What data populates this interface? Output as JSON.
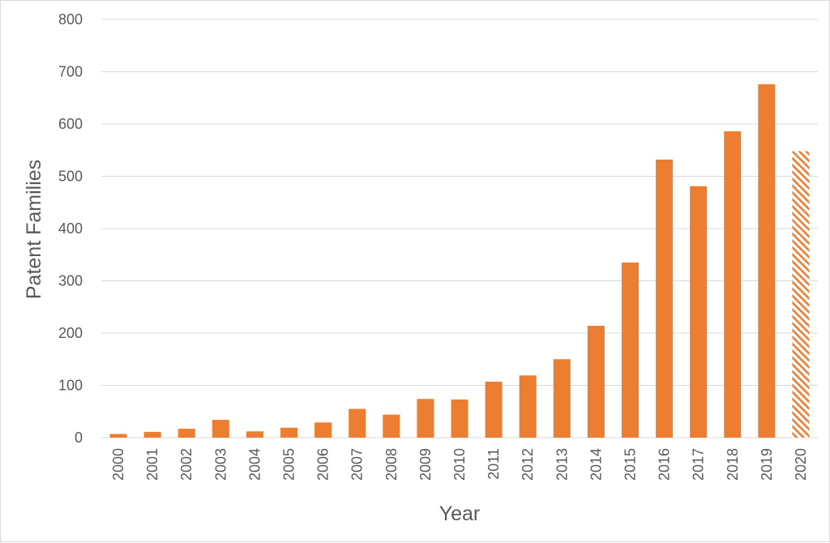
{
  "chart_data": {
    "type": "bar",
    "title": "",
    "xlabel": "Year",
    "ylabel": "Patent Families",
    "ylim": [
      0,
      800
    ],
    "yticks": [
      0,
      100,
      200,
      300,
      400,
      500,
      600,
      700,
      800
    ],
    "grid": true,
    "legend": "none",
    "categories": [
      "2000",
      "2001",
      "2002",
      "2003",
      "2004",
      "2005",
      "2006",
      "2007",
      "2008",
      "2009",
      "2010",
      "2011",
      "2012",
      "2013",
      "2014",
      "2015",
      "2016",
      "2017",
      "2018",
      "2019",
      "2020"
    ],
    "values": [
      7,
      11,
      17,
      34,
      12,
      19,
      29,
      55,
      44,
      74,
      73,
      107,
      119,
      150,
      214,
      335,
      532,
      481,
      586,
      676,
      548
    ],
    "bar_color": "#ED7D31",
    "hatched_categories": [
      "2020"
    ]
  }
}
